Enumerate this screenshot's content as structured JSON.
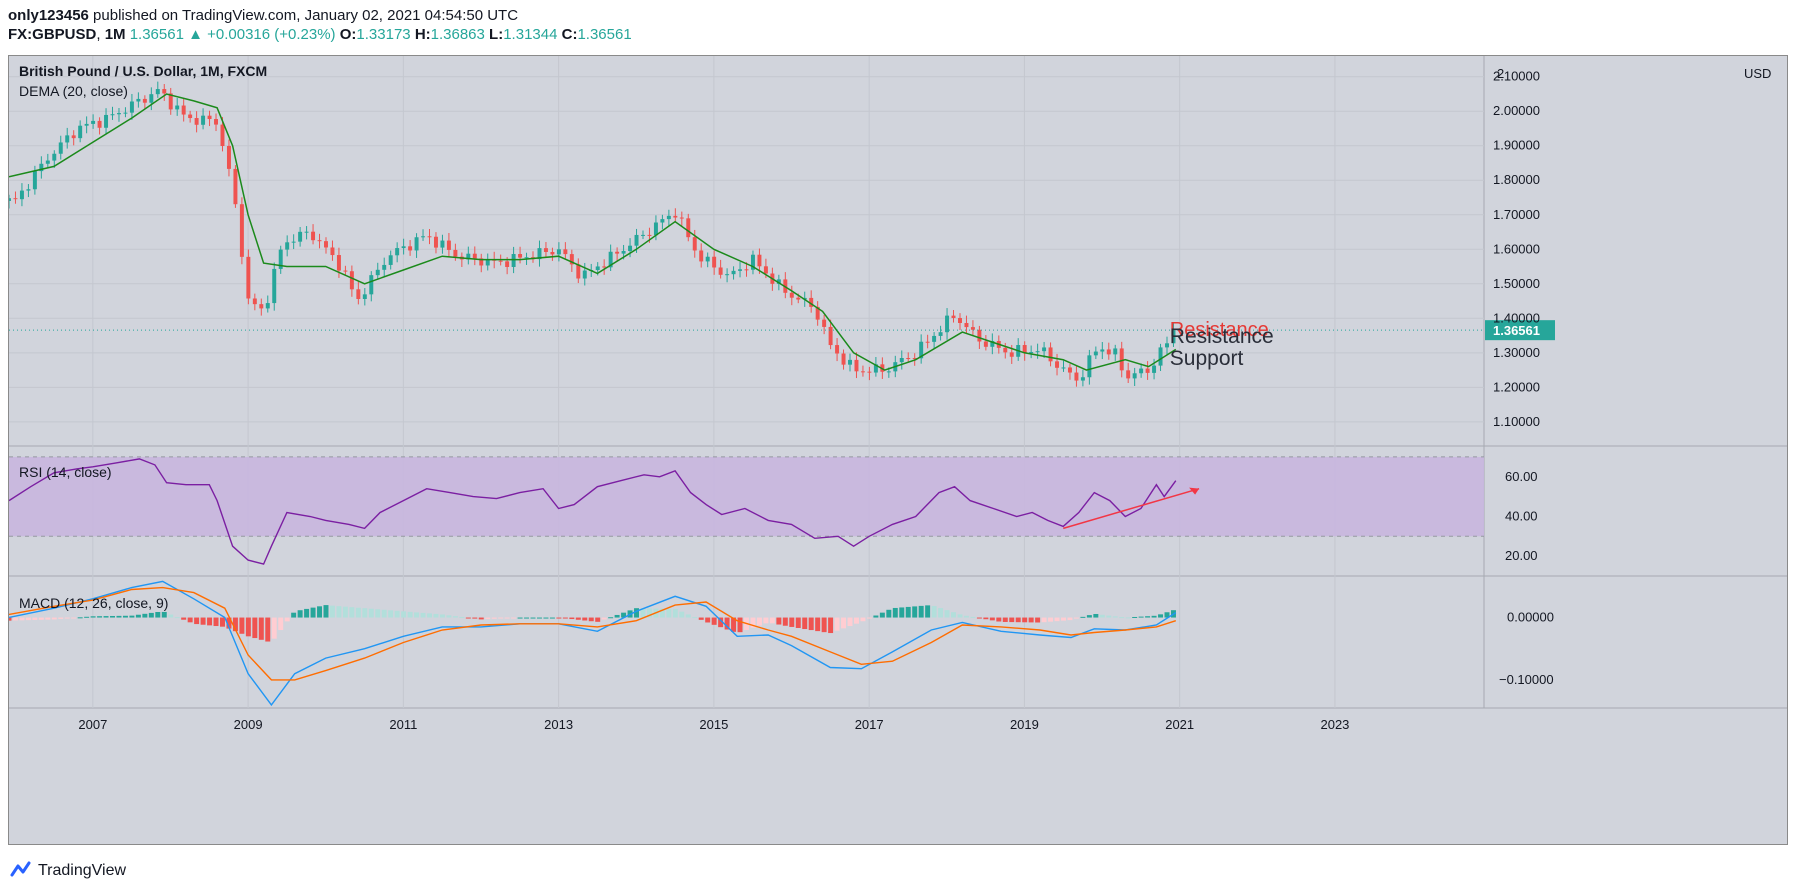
{
  "header": {
    "publisher": "only123456",
    "published_text": " published on TradingView.com, January 02, 2021 04:54:50 UTC",
    "symbol": "FX:GBPUSD",
    "interval": "1M",
    "price": "1.36561",
    "change": "+0.00316 (+0.23%)",
    "o_label": "O:",
    "o": "1.33173",
    "h_label": "H:",
    "h": "1.36863",
    "l_label": "L:",
    "l": "1.31344",
    "c_label": "C:",
    "c": "1.36561"
  },
  "panes": {
    "main_title": "British Pound / U.S. Dollar, 1M, FXCM",
    "dema_label": "DEMA (20, close)",
    "rsi_label": "RSI (14, close)",
    "macd_label": "MACD (12, 26, close, 9)",
    "currency": "USD",
    "last_price_tag": "1.36561"
  },
  "annotations": {
    "resistance_red": "Resistance",
    "resistance_dark": "Resistance",
    "support": "Support"
  },
  "colors": {
    "up": "#26a69a",
    "down": "#ef5350",
    "dema": "#1b8a1b",
    "rsi": "#7b1fa2",
    "rsi_band": "#c8b6de",
    "macd": "#2196f3",
    "signal": "#ff6d00",
    "trend_arrow": "#f23645",
    "pane_bg": "#d1d4dc"
  },
  "chart_data": [
    {
      "type": "candlestick",
      "title": "British Pound / U.S. Dollar, 1M, FXCM",
      "overlay": "DEMA (20, close)",
      "y_ticks": [
        "1.10000",
        "1.20000",
        "1.30000",
        "1.40000",
        "1.50000",
        "1.60000",
        "1.70000",
        "1.80000",
        "1.90000",
        "2.00000",
        "2.10000"
      ],
      "y_top_label": "2",
      "ylim": [
        1.03,
        2.16
      ],
      "x_ticks": [
        "2007",
        "2009",
        "2011",
        "2013",
        "2015",
        "2017",
        "2019",
        "2021",
        "2023"
      ],
      "xlim": [
        2005.92,
        2024.92
      ],
      "last_close": 1.36561,
      "close_points": [
        [
          2006.0,
          1.74
        ],
        [
          2006.4,
          1.86
        ],
        [
          2006.8,
          1.95
        ],
        [
          2007.2,
          1.98
        ],
        [
          2007.6,
          2.03
        ],
        [
          2007.85,
          2.06
        ],
        [
          2008.2,
          1.98
        ],
        [
          2008.6,
          1.97
        ],
        [
          2008.8,
          1.78
        ],
        [
          2008.95,
          1.55
        ],
        [
          2009.0,
          1.45
        ],
        [
          2009.2,
          1.42
        ],
        [
          2009.45,
          1.62
        ],
        [
          2009.8,
          1.65
        ],
        [
          2010.2,
          1.55
        ],
        [
          2010.4,
          1.45
        ],
        [
          2010.8,
          1.58
        ],
        [
          2011.3,
          1.64
        ],
        [
          2011.7,
          1.58
        ],
        [
          2012.2,
          1.56
        ],
        [
          2012.6,
          1.58
        ],
        [
          2013.0,
          1.6
        ],
        [
          2013.3,
          1.52
        ],
        [
          2013.7,
          1.58
        ],
        [
          2014.2,
          1.66
        ],
        [
          2014.5,
          1.71
        ],
        [
          2014.8,
          1.58
        ],
        [
          2015.2,
          1.52
        ],
        [
          2015.5,
          1.57
        ],
        [
          2015.9,
          1.48
        ],
        [
          2016.3,
          1.43
        ],
        [
          2016.5,
          1.32
        ],
        [
          2016.8,
          1.25
        ],
        [
          2017.2,
          1.25
        ],
        [
          2017.6,
          1.3
        ],
        [
          2018.1,
          1.41
        ],
        [
          2018.4,
          1.34
        ],
        [
          2018.8,
          1.3
        ],
        [
          2019.2,
          1.31
        ],
        [
          2019.5,
          1.25
        ],
        [
          2019.7,
          1.22
        ],
        [
          2019.95,
          1.32
        ],
        [
          2020.2,
          1.29
        ],
        [
          2020.3,
          1.23
        ],
        [
          2020.6,
          1.25
        ],
        [
          2020.75,
          1.3
        ],
        [
          2020.95,
          1.36561
        ]
      ],
      "dema_points": [
        [
          2005.92,
          1.81
        ],
        [
          2006.5,
          1.84
        ],
        [
          2007.0,
          1.91
        ],
        [
          2007.5,
          1.98
        ],
        [
          2007.95,
          2.05
        ],
        [
          2008.3,
          2.03
        ],
        [
          2008.6,
          2.01
        ],
        [
          2008.8,
          1.9
        ],
        [
          2009.0,
          1.7
        ],
        [
          2009.2,
          1.56
        ],
        [
          2009.5,
          1.55
        ],
        [
          2010.0,
          1.55
        ],
        [
          2010.5,
          1.5
        ],
        [
          2011.0,
          1.54
        ],
        [
          2011.5,
          1.58
        ],
        [
          2012.0,
          1.57
        ],
        [
          2012.5,
          1.57
        ],
        [
          2013.0,
          1.58
        ],
        [
          2013.5,
          1.53
        ],
        [
          2014.0,
          1.6
        ],
        [
          2014.5,
          1.68
        ],
        [
          2015.0,
          1.6
        ],
        [
          2015.5,
          1.55
        ],
        [
          2016.0,
          1.48
        ],
        [
          2016.4,
          1.42
        ],
        [
          2016.8,
          1.3
        ],
        [
          2017.2,
          1.25
        ],
        [
          2017.6,
          1.28
        ],
        [
          2018.2,
          1.36
        ],
        [
          2018.6,
          1.33
        ],
        [
          2019.0,
          1.3
        ],
        [
          2019.5,
          1.28
        ],
        [
          2019.8,
          1.25
        ],
        [
          2020.3,
          1.28
        ],
        [
          2020.6,
          1.26
        ],
        [
          2020.95,
          1.31
        ]
      ]
    },
    {
      "type": "line",
      "title": "RSI (14, close)",
      "y_ticks": [
        "20.00",
        "40.00",
        "60.00"
      ],
      "ylim": [
        10,
        75
      ],
      "band": [
        30,
        70
      ],
      "x": [
        2005.92,
        2006.2,
        2006.5,
        2006.8,
        2007.0,
        2007.3,
        2007.6,
        2007.8,
        2007.95,
        2008.2,
        2008.5,
        2008.6,
        2008.8,
        2009.0,
        2009.2,
        2009.3,
        2009.5,
        2009.8,
        2010.0,
        2010.3,
        2010.5,
        2010.7,
        2011.0,
        2011.3,
        2011.6,
        2011.9,
        2012.2,
        2012.5,
        2012.8,
        2013.0,
        2013.2,
        2013.5,
        2013.8,
        2014.1,
        2014.3,
        2014.5,
        2014.7,
        2014.9,
        2015.1,
        2015.4,
        2015.7,
        2016.0,
        2016.3,
        2016.6,
        2016.8,
        2017.0,
        2017.3,
        2017.6,
        2017.9,
        2018.1,
        2018.3,
        2018.6,
        2018.9,
        2019.1,
        2019.3,
        2019.5,
        2019.7,
        2019.9,
        2020.1,
        2020.3,
        2020.5,
        2020.7,
        2020.8,
        2020.95
      ],
      "values": [
        48,
        55,
        62,
        64,
        65,
        67,
        69,
        66,
        57,
        56,
        56,
        48,
        25,
        18,
        16,
        25,
        42,
        40,
        38,
        36,
        34,
        42,
        48,
        54,
        52,
        50,
        49,
        52,
        54,
        44,
        46,
        55,
        58,
        61,
        60,
        63,
        52,
        46,
        41,
        44,
        38,
        36,
        29,
        30,
        25,
        30,
        36,
        40,
        52,
        55,
        48,
        44,
        40,
        42,
        38,
        35,
        42,
        52,
        48,
        40,
        44,
        56,
        50,
        58
      ]
    },
    {
      "type": "line",
      "title": "MACD (12, 26, close, 9)",
      "y_ticks": [
        "0.00000",
        "−0.10000"
      ],
      "ylim": [
        -0.145,
        0.065
      ],
      "x": [
        2005.92,
        2006.5,
        2007.0,
        2007.5,
        2007.9,
        2008.3,
        2008.7,
        2009.0,
        2009.3,
        2009.6,
        2010.0,
        2010.5,
        2011.0,
        2011.5,
        2012.0,
        2012.5,
        2013.0,
        2013.5,
        2014.0,
        2014.5,
        2014.9,
        2015.3,
        2015.7,
        2016.0,
        2016.5,
        2016.9,
        2017.3,
        2017.8,
        2018.2,
        2018.7,
        2019.2,
        2019.6,
        2019.9,
        2020.3,
        2020.7,
        2020.95
      ],
      "macd": [
        0.0,
        0.015,
        0.03,
        0.048,
        0.058,
        0.03,
        0.0,
        -0.09,
        -0.14,
        -0.09,
        -0.065,
        -0.05,
        -0.03,
        -0.015,
        -0.015,
        -0.01,
        -0.01,
        -0.022,
        0.01,
        0.034,
        0.018,
        -0.03,
        -0.028,
        -0.045,
        -0.08,
        -0.082,
        -0.055,
        -0.02,
        -0.008,
        -0.022,
        -0.028,
        -0.032,
        -0.018,
        -0.02,
        -0.012,
        0.008
      ],
      "signal": [
        0.005,
        0.018,
        0.028,
        0.045,
        0.048,
        0.04,
        0.015,
        -0.06,
        -0.1,
        -0.1,
        -0.085,
        -0.065,
        -0.04,
        -0.02,
        -0.012,
        -0.01,
        -0.01,
        -0.015,
        -0.005,
        0.02,
        0.025,
        -0.005,
        -0.02,
        -0.03,
        -0.055,
        -0.075,
        -0.07,
        -0.04,
        -0.012,
        -0.015,
        -0.02,
        -0.028,
        -0.024,
        -0.02,
        -0.015,
        -0.005
      ]
    }
  ],
  "brand": {
    "name": "TradingView"
  }
}
